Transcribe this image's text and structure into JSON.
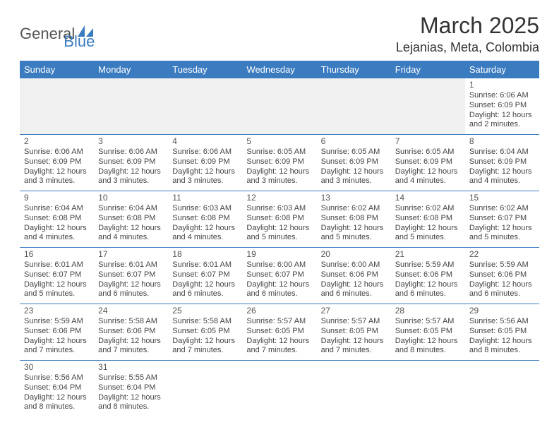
{
  "logo": {
    "part1": "General",
    "part2": "Blue"
  },
  "title": "March 2025",
  "location": "Lejanias, Meta, Colombia",
  "colors": {
    "header_bg": "#3b7bbf",
    "header_text": "#ffffff",
    "cell_border": "#3b7bbf",
    "empty_bg": "#f0f0f0",
    "body_text": "#444444",
    "logo_gray": "#555555",
    "logo_blue": "#3b7bbf"
  },
  "weekdays": [
    "Sunday",
    "Monday",
    "Tuesday",
    "Wednesday",
    "Thursday",
    "Friday",
    "Saturday"
  ],
  "weeks": [
    [
      null,
      null,
      null,
      null,
      null,
      null,
      {
        "n": "1",
        "sr": "Sunrise: 6:06 AM",
        "ss": "Sunset: 6:09 PM",
        "d1": "Daylight: 12 hours",
        "d2": "and 2 minutes."
      }
    ],
    [
      {
        "n": "2",
        "sr": "Sunrise: 6:06 AM",
        "ss": "Sunset: 6:09 PM",
        "d1": "Daylight: 12 hours",
        "d2": "and 3 minutes."
      },
      {
        "n": "3",
        "sr": "Sunrise: 6:06 AM",
        "ss": "Sunset: 6:09 PM",
        "d1": "Daylight: 12 hours",
        "d2": "and 3 minutes."
      },
      {
        "n": "4",
        "sr": "Sunrise: 6:06 AM",
        "ss": "Sunset: 6:09 PM",
        "d1": "Daylight: 12 hours",
        "d2": "and 3 minutes."
      },
      {
        "n": "5",
        "sr": "Sunrise: 6:05 AM",
        "ss": "Sunset: 6:09 PM",
        "d1": "Daylight: 12 hours",
        "d2": "and 3 minutes."
      },
      {
        "n": "6",
        "sr": "Sunrise: 6:05 AM",
        "ss": "Sunset: 6:09 PM",
        "d1": "Daylight: 12 hours",
        "d2": "and 3 minutes."
      },
      {
        "n": "7",
        "sr": "Sunrise: 6:05 AM",
        "ss": "Sunset: 6:09 PM",
        "d1": "Daylight: 12 hours",
        "d2": "and 4 minutes."
      },
      {
        "n": "8",
        "sr": "Sunrise: 6:04 AM",
        "ss": "Sunset: 6:09 PM",
        "d1": "Daylight: 12 hours",
        "d2": "and 4 minutes."
      }
    ],
    [
      {
        "n": "9",
        "sr": "Sunrise: 6:04 AM",
        "ss": "Sunset: 6:08 PM",
        "d1": "Daylight: 12 hours",
        "d2": "and 4 minutes."
      },
      {
        "n": "10",
        "sr": "Sunrise: 6:04 AM",
        "ss": "Sunset: 6:08 PM",
        "d1": "Daylight: 12 hours",
        "d2": "and 4 minutes."
      },
      {
        "n": "11",
        "sr": "Sunrise: 6:03 AM",
        "ss": "Sunset: 6:08 PM",
        "d1": "Daylight: 12 hours",
        "d2": "and 4 minutes."
      },
      {
        "n": "12",
        "sr": "Sunrise: 6:03 AM",
        "ss": "Sunset: 6:08 PM",
        "d1": "Daylight: 12 hours",
        "d2": "and 5 minutes."
      },
      {
        "n": "13",
        "sr": "Sunrise: 6:02 AM",
        "ss": "Sunset: 6:08 PM",
        "d1": "Daylight: 12 hours",
        "d2": "and 5 minutes."
      },
      {
        "n": "14",
        "sr": "Sunrise: 6:02 AM",
        "ss": "Sunset: 6:08 PM",
        "d1": "Daylight: 12 hours",
        "d2": "and 5 minutes."
      },
      {
        "n": "15",
        "sr": "Sunrise: 6:02 AM",
        "ss": "Sunset: 6:07 PM",
        "d1": "Daylight: 12 hours",
        "d2": "and 5 minutes."
      }
    ],
    [
      {
        "n": "16",
        "sr": "Sunrise: 6:01 AM",
        "ss": "Sunset: 6:07 PM",
        "d1": "Daylight: 12 hours",
        "d2": "and 5 minutes."
      },
      {
        "n": "17",
        "sr": "Sunrise: 6:01 AM",
        "ss": "Sunset: 6:07 PM",
        "d1": "Daylight: 12 hours",
        "d2": "and 6 minutes."
      },
      {
        "n": "18",
        "sr": "Sunrise: 6:01 AM",
        "ss": "Sunset: 6:07 PM",
        "d1": "Daylight: 12 hours",
        "d2": "and 6 minutes."
      },
      {
        "n": "19",
        "sr": "Sunrise: 6:00 AM",
        "ss": "Sunset: 6:07 PM",
        "d1": "Daylight: 12 hours",
        "d2": "and 6 minutes."
      },
      {
        "n": "20",
        "sr": "Sunrise: 6:00 AM",
        "ss": "Sunset: 6:06 PM",
        "d1": "Daylight: 12 hours",
        "d2": "and 6 minutes."
      },
      {
        "n": "21",
        "sr": "Sunrise: 5:59 AM",
        "ss": "Sunset: 6:06 PM",
        "d1": "Daylight: 12 hours",
        "d2": "and 6 minutes."
      },
      {
        "n": "22",
        "sr": "Sunrise: 5:59 AM",
        "ss": "Sunset: 6:06 PM",
        "d1": "Daylight: 12 hours",
        "d2": "and 6 minutes."
      }
    ],
    [
      {
        "n": "23",
        "sr": "Sunrise: 5:59 AM",
        "ss": "Sunset: 6:06 PM",
        "d1": "Daylight: 12 hours",
        "d2": "and 7 minutes."
      },
      {
        "n": "24",
        "sr": "Sunrise: 5:58 AM",
        "ss": "Sunset: 6:06 PM",
        "d1": "Daylight: 12 hours",
        "d2": "and 7 minutes."
      },
      {
        "n": "25",
        "sr": "Sunrise: 5:58 AM",
        "ss": "Sunset: 6:05 PM",
        "d1": "Daylight: 12 hours",
        "d2": "and 7 minutes."
      },
      {
        "n": "26",
        "sr": "Sunrise: 5:57 AM",
        "ss": "Sunset: 6:05 PM",
        "d1": "Daylight: 12 hours",
        "d2": "and 7 minutes."
      },
      {
        "n": "27",
        "sr": "Sunrise: 5:57 AM",
        "ss": "Sunset: 6:05 PM",
        "d1": "Daylight: 12 hours",
        "d2": "and 7 minutes."
      },
      {
        "n": "28",
        "sr": "Sunrise: 5:57 AM",
        "ss": "Sunset: 6:05 PM",
        "d1": "Daylight: 12 hours",
        "d2": "and 8 minutes."
      },
      {
        "n": "29",
        "sr": "Sunrise: 5:56 AM",
        "ss": "Sunset: 6:05 PM",
        "d1": "Daylight: 12 hours",
        "d2": "and 8 minutes."
      }
    ],
    [
      {
        "n": "30",
        "sr": "Sunrise: 5:56 AM",
        "ss": "Sunset: 6:04 PM",
        "d1": "Daylight: 12 hours",
        "d2": "and 8 minutes."
      },
      {
        "n": "31",
        "sr": "Sunrise: 5:55 AM",
        "ss": "Sunset: 6:04 PM",
        "d1": "Daylight: 12 hours",
        "d2": "and 8 minutes."
      },
      null,
      null,
      null,
      null,
      null
    ]
  ]
}
